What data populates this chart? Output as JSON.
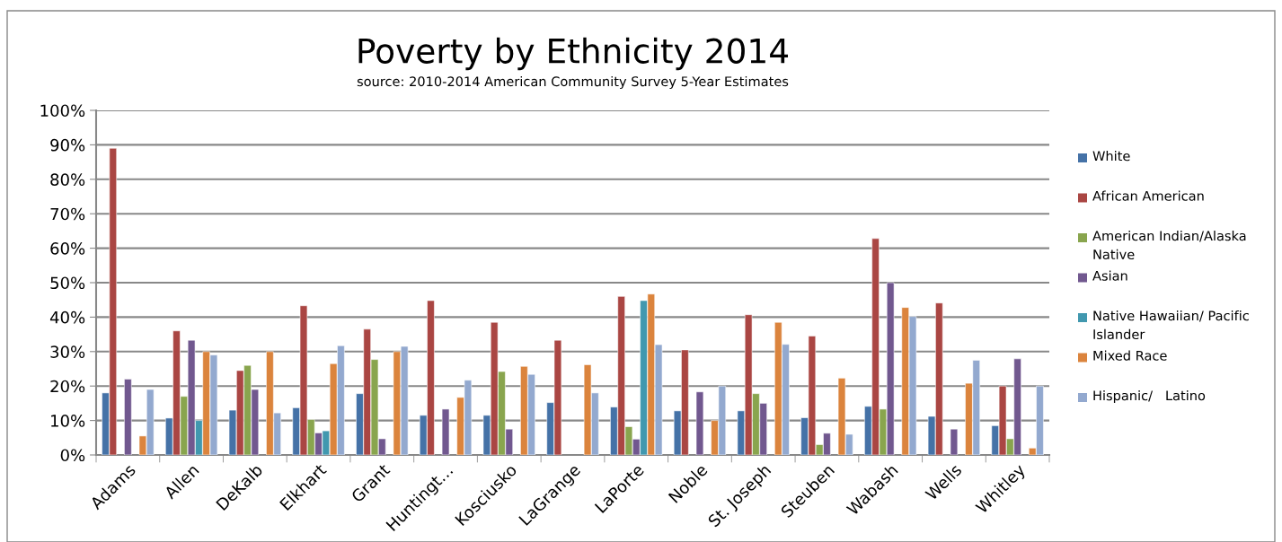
{
  "chart_data": {
    "type": "bar",
    "title": "Poverty by Ethnicity 2014",
    "subtitle": "source: 2010-2014 American Community Survey 5-Year Estimates",
    "categories": [
      "Adams",
      "Allen",
      "DeKalb",
      "Elkhart",
      "Grant",
      "Huntingt…",
      "Kosciusko",
      "LaGrange",
      "LaPorte",
      "Noble",
      "St. Joseph",
      "Steuben",
      "Wabash",
      "Wells",
      "Whitley"
    ],
    "series": [
      {
        "name": "White",
        "color": "#4572a7",
        "values": [
          18,
          10.7,
          13,
          13.7,
          17.8,
          11.5,
          11.5,
          15.2,
          13.9,
          12.8,
          12.8,
          10.8,
          14.1,
          11.2,
          8.5
        ]
      },
      {
        "name": "African American",
        "color": "#aa4643",
        "values": [
          89,
          36,
          24.5,
          43.3,
          36.5,
          44.8,
          38.5,
          33.3,
          46,
          30.5,
          40.7,
          34.5,
          62.8,
          44.1,
          20
        ]
      },
      {
        "name": "American Indian/Alaska Native",
        "color": "#89a54e",
        "values": [
          null,
          17,
          26,
          10.3,
          27.7,
          null,
          24.2,
          null,
          8.2,
          null,
          17.8,
          3,
          13.3,
          null,
          4.7
        ]
      },
      {
        "name": "Asian",
        "color": "#71588f",
        "values": [
          22,
          33.3,
          19,
          6.4,
          4.7,
          13.3,
          7.5,
          null,
          4.6,
          18.3,
          15,
          6.3,
          50,
          7.5,
          27.9
        ]
      },
      {
        "name": "Native Hawaiian/ Pacific Islander",
        "color": "#4198af",
        "values": [
          null,
          10,
          null,
          7,
          null,
          null,
          null,
          null,
          44.8,
          null,
          null,
          null,
          null,
          null,
          null
        ]
      },
      {
        "name": "Mixed Race",
        "color": "#db843d",
        "values": [
          5.5,
          30,
          30,
          26.5,
          30,
          16.7,
          25.7,
          26.2,
          46.7,
          10,
          38.5,
          22.3,
          42.8,
          20.8,
          2
        ]
      },
      {
        "name": "Hispanic/   Latino",
        "color": "#93a9cf",
        "values": [
          19,
          29,
          12.2,
          31.7,
          31.5,
          21.7,
          23.4,
          18,
          32,
          20,
          32.1,
          6,
          40.2,
          27.5,
          20
        ]
      }
    ],
    "ylim": [
      0,
      100
    ],
    "yticks": [
      {
        "value": 0,
        "label": "0%"
      },
      {
        "value": 10,
        "label": "10%"
      },
      {
        "value": 20,
        "label": "20%"
      },
      {
        "value": 30,
        "label": "30%"
      },
      {
        "value": 40,
        "label": "40%"
      },
      {
        "value": 50,
        "label": "50%"
      },
      {
        "value": 60,
        "label": "60%"
      },
      {
        "value": 70,
        "label": "70%"
      },
      {
        "value": 80,
        "label": "80%"
      },
      {
        "value": 90,
        "label": "90%"
      },
      {
        "value": 100,
        "label": "100%"
      }
    ],
    "grid": "y",
    "legend": "right"
  }
}
